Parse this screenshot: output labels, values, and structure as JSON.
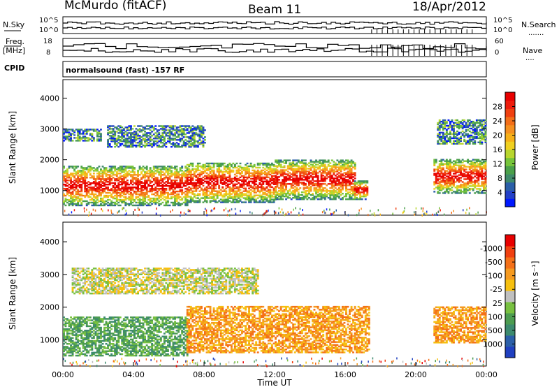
{
  "header": {
    "station": "McMurdo (fitACF)",
    "beam": "Beam 11",
    "date": "18/Apr/2012"
  },
  "aux_panels": {
    "nsky_label": "N.Sky",
    "nsky_ticks": [
      "10^5",
      "10^0"
    ],
    "nsearch_label": "N.Search",
    "nsearch_ticks": [
      "10^5",
      "10^0"
    ],
    "freq_label_line1": "Freq.",
    "freq_label_line2": "[MHz]",
    "freq_ticks": [
      "18",
      "8"
    ],
    "nave_label": "Nave",
    "nave_ticks": [
      "60",
      "0"
    ],
    "cpid_label": "CPID",
    "cpid_text": "normalsound (fast) -157 RF"
  },
  "chart_data": [
    {
      "type": "heatmap",
      "panel": "power",
      "ylabel": "Slant Range [km]",
      "xlabel": "Time UT",
      "x_ticks": [
        "00:00",
        "04:00",
        "08:00",
        "12:00",
        "16:00",
        "20:00",
        "00:00"
      ],
      "x_range_hours": [
        0,
        24
      ],
      "y_ticks": [
        1000,
        2000,
        3000,
        4000
      ],
      "ylim": [
        200,
        4600
      ],
      "colorbar": {
        "label": "Power [dB]",
        "ticks": [
          "4",
          "8",
          "12",
          "16",
          "20",
          "24",
          "28"
        ],
        "colors": [
          "#0018ff",
          "#2340c8",
          "#2b5fa8",
          "#3f8a6a",
          "#4aa04a",
          "#76c43a",
          "#b8d62e",
          "#f0d020",
          "#f6b018",
          "#f59020",
          "#f36e18",
          "#f04010",
          "#ee1c0c",
          "#e80000"
        ]
      },
      "bands": [
        {
          "t0": 0.0,
          "t1": 2.2,
          "r0": 2600,
          "r1": 3000
        },
        {
          "t0": 0.0,
          "t1": 7.0,
          "r0": 500,
          "r1": 1800
        },
        {
          "t0": 2.5,
          "t1": 8.0,
          "r0": 2400,
          "r1": 3100
        },
        {
          "t0": 7.0,
          "t1": 12.0,
          "r0": 600,
          "r1": 1900
        },
        {
          "t0": 12.0,
          "t1": 16.5,
          "r0": 700,
          "r1": 2000
        },
        {
          "t0": 16.5,
          "t1": 17.3,
          "r0": 700,
          "r1": 1300
        },
        {
          "t0": 21.0,
          "t1": 24.0,
          "r0": 900,
          "r1": 2000
        },
        {
          "t0": 21.2,
          "t1": 24.0,
          "r0": 2500,
          "r1": 3300
        }
      ]
    },
    {
      "type": "heatmap",
      "panel": "velocity",
      "ylabel": "Slant Range [km]",
      "xlabel": "Time UT",
      "x_ticks": [
        "00:00",
        "04:00",
        "08:00",
        "12:00",
        "16:00",
        "20:00",
        "00:00"
      ],
      "x_range_hours": [
        0,
        24
      ],
      "y_ticks": [
        1000,
        2000,
        3000,
        4000
      ],
      "ylim": [
        200,
        4600
      ],
      "colorbar": {
        "label": "Velocity [m s⁻¹]",
        "ticks": [
          "1000",
          "500",
          "100",
          "25",
          "-25",
          "-100",
          "-500",
          "-1000"
        ],
        "colors": [
          "#2040c0",
          "#2b5fa8",
          "#3c8a6e",
          "#4c9c50",
          "#78c040",
          "#c0c0c0",
          "#f6c010",
          "#f59a20",
          "#f47018",
          "#f04010",
          "#e80000"
        ]
      },
      "bands": [
        {
          "t0": 0.0,
          "t1": 7.0,
          "r0": 500,
          "r1": 1700,
          "class": "positive"
        },
        {
          "t0": 7.0,
          "t1": 17.3,
          "r0": 600,
          "r1": 2000,
          "class": "negative"
        },
        {
          "t0": 21.0,
          "t1": 24.0,
          "r0": 900,
          "r1": 2000,
          "class": "negative"
        },
        {
          "t0": 0.5,
          "t1": 11.0,
          "r0": 2400,
          "r1": 3200,
          "class": "near-zero"
        }
      ]
    }
  ]
}
